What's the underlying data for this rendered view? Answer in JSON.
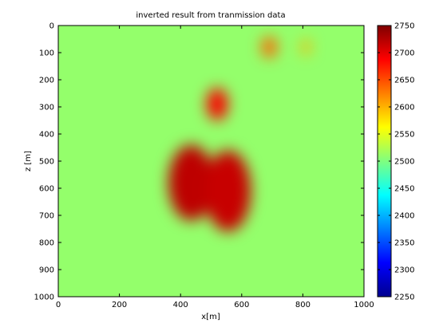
{
  "chart_data": {
    "type": "heatmap",
    "title": "inverted result from tranmission data",
    "xlabel": "x[m]",
    "ylabel": "z [m]",
    "xlim": [
      0,
      1000
    ],
    "ylim": [
      0,
      1000
    ],
    "y_direction": "reversed",
    "x_ticks": [
      0,
      200,
      400,
      600,
      800,
      1000
    ],
    "y_ticks": [
      0,
      100,
      200,
      300,
      400,
      500,
      600,
      700,
      800,
      900,
      1000
    ],
    "colormap": "jet",
    "clim": [
      2250,
      2750
    ],
    "colorbar_ticks": [
      2250,
      2300,
      2350,
      2400,
      2450,
      2500,
      2550,
      2600,
      2650,
      2700,
      2750
    ],
    "background_value": 2510,
    "features": [
      {
        "shape": "ellipse",
        "cx": 435,
        "cz": 580,
        "rx": 75,
        "rz": 140,
        "value": 2720
      },
      {
        "shape": "ellipse",
        "cx": 555,
        "cz": 610,
        "rx": 75,
        "rz": 150,
        "value": 2715
      },
      {
        "shape": "ellipse",
        "cx": 520,
        "cz": 290,
        "rx": 35,
        "rz": 60,
        "value": 2690
      },
      {
        "shape": "ellipse",
        "cx": 690,
        "cz": 80,
        "rx": 25,
        "rz": 40,
        "value": 2640
      },
      {
        "shape": "ellipse",
        "cx": 810,
        "cz": 80,
        "rx": 15,
        "rz": 30,
        "value": 2600
      }
    ]
  }
}
